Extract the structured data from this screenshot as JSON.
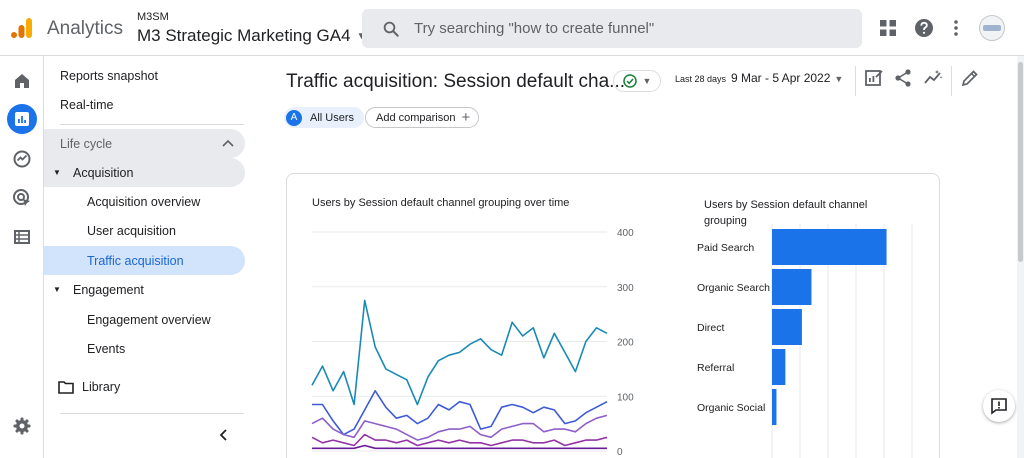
{
  "header": {
    "app_name": "Analytics",
    "account_short": "M3SM",
    "property_name": "M3 Strategic Marketing GA4",
    "search_placeholder": "Try searching \"how to create funnel\"",
    "icons": [
      "apps-grid-icon",
      "help-icon",
      "more-vert-icon"
    ],
    "logo_colors": [
      "#f9ab00",
      "#e37400"
    ]
  },
  "rail": {
    "items": [
      {
        "icon": "home-icon"
      },
      {
        "icon": "reports-icon",
        "active": true
      },
      {
        "icon": "explore-icon"
      },
      {
        "icon": "advertising-icon"
      },
      {
        "icon": "configure-icon"
      }
    ],
    "settings_icon": "gear-icon"
  },
  "nav": {
    "reports_snapshot": "Reports snapshot",
    "realtime": "Real-time",
    "lifecycle": "Life cycle",
    "acquisition": "Acquisition",
    "acquisition_overview": "Acquisition overview",
    "user_acquisition": "User acquisition",
    "traffic_acquisition": "Traffic acquisition",
    "engagement": "Engagement",
    "engagement_overview": "Engagement overview",
    "events": "Events",
    "library": "Library"
  },
  "main": {
    "title": "Traffic acquisition: Session default cha...",
    "date_prefix": "Last 28 days",
    "date_range": "9 Mar - 5 Apr 2022",
    "comparison": {
      "badge": "A",
      "label": "All Users",
      "add_label": "Add comparison"
    },
    "accent_color": "#1a73e8"
  },
  "chart_data": [
    {
      "type": "line",
      "title": "Users by Session default channel grouping over time",
      "ylim": [
        0,
        400
      ],
      "y_ticks": [
        "400",
        "300",
        "200",
        "100",
        "0"
      ],
      "series": [
        {
          "color": "#1a8ab5",
          "values": [
            120,
            155,
            110,
            145,
            85,
            275,
            190,
            150,
            140,
            130,
            85,
            135,
            165,
            175,
            180,
            195,
            205,
            185,
            175,
            235,
            210,
            225,
            170,
            215,
            180,
            145,
            200,
            225,
            215
          ]
        },
        {
          "color": "#3d5bd6",
          "values": [
            85,
            85,
            55,
            30,
            40,
            75,
            110,
            80,
            60,
            65,
            50,
            60,
            85,
            75,
            90,
            85,
            40,
            45,
            80,
            85,
            80,
            70,
            80,
            75,
            50,
            55,
            70,
            80,
            90
          ]
        },
        {
          "color": "#8e5fc9",
          "values": [
            50,
            60,
            40,
            30,
            25,
            55,
            50,
            45,
            40,
            30,
            20,
            25,
            35,
            40,
            40,
            45,
            30,
            25,
            40,
            45,
            50,
            50,
            35,
            40,
            40,
            35,
            50,
            60,
            65
          ]
        },
        {
          "color": "#9334a6",
          "values": [
            25,
            15,
            20,
            15,
            10,
            30,
            20,
            20,
            15,
            20,
            10,
            15,
            20,
            15,
            20,
            15,
            15,
            10,
            15,
            20,
            20,
            15,
            15,
            20,
            10,
            15,
            20,
            20,
            25
          ]
        },
        {
          "color": "#6a1b9a",
          "values": [
            5,
            5,
            5,
            5,
            5,
            10,
            5,
            5,
            5,
            5,
            5,
            5,
            5,
            5,
            5,
            5,
            5,
            5,
            5,
            5,
            5,
            5,
            5,
            5,
            5,
            5,
            5,
            5,
            5
          ]
        }
      ]
    },
    {
      "type": "bar",
      "orientation": "horizontal",
      "title": "Users by Session default channel grouping",
      "categories": [
        "Paid Search",
        "Organic Search",
        "Direct",
        "Referral",
        "Organic Social"
      ],
      "values": [
        1800,
        620,
        470,
        210,
        70
      ],
      "xlim": [
        0,
        2200
      ],
      "color": "#1a73e8"
    }
  ]
}
